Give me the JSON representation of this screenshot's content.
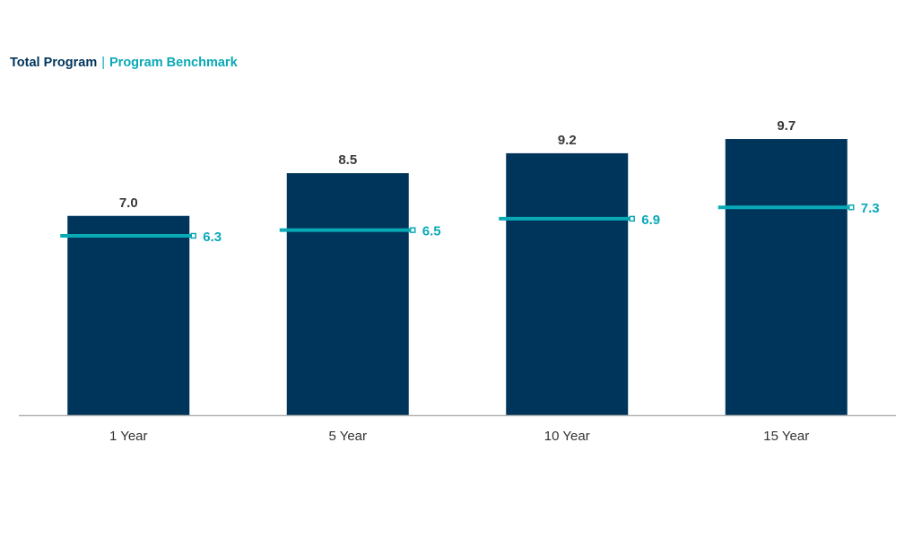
{
  "chart_data": {
    "type": "bar",
    "categories": [
      "1 Year",
      "5 Year",
      "10 Year",
      "15 Year"
    ],
    "series": [
      {
        "name": "Total Program",
        "values": [
          7.0,
          8.5,
          9.2,
          9.7
        ]
      },
      {
        "name": "Program Benchmark",
        "values": [
          6.3,
          6.5,
          6.9,
          7.3
        ]
      }
    ],
    "value_labels": {
      "bars": [
        "7.0",
        "8.5",
        "9.2",
        "9.7"
      ],
      "benchmark": [
        "6.3",
        "6.5",
        "6.9",
        "7.3"
      ]
    },
    "legend": {
      "primary": "Total Program",
      "separator": "|",
      "secondary": "Program Benchmark",
      "position": "top-left"
    },
    "ylim": [
      0,
      14.6
    ],
    "grid": false,
    "colors": {
      "bar": "#00355b",
      "benchmark": "#0aa9b6",
      "bar_label": "#3a3a3a",
      "axis": "#b3b3b3",
      "tick_label": "#333333",
      "separator": "#0aa9b6"
    }
  }
}
